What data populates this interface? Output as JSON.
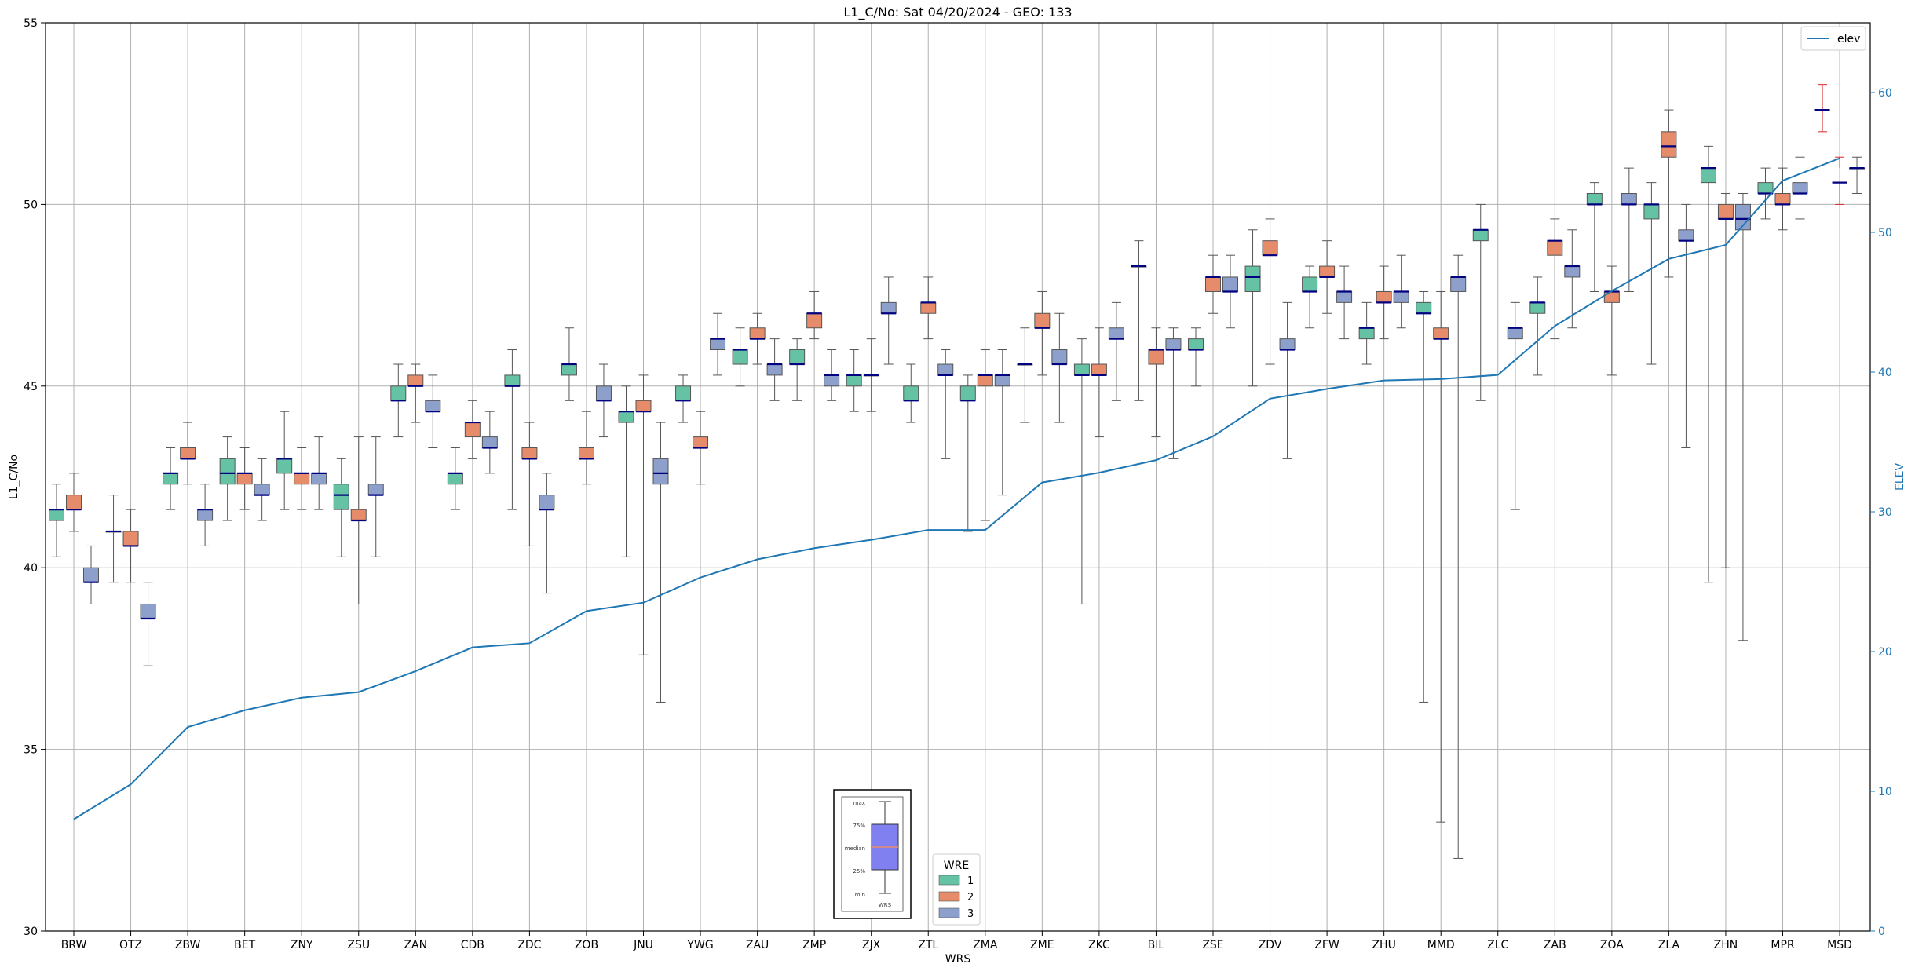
{
  "chart_data": {
    "type": "box",
    "title": "L1_C/No: Sat 04/20/2024 - GEO: 133",
    "xlabel": "WRS",
    "ylabel": "L1_C/No",
    "y2label": "ELEV",
    "ylim": [
      30,
      55
    ],
    "y2lim": [
      0,
      65
    ],
    "yticks": [
      30,
      35,
      40,
      45,
      50,
      55
    ],
    "y2ticks": [
      0,
      10,
      20,
      30,
      40,
      50,
      60
    ],
    "grid": true,
    "categories": [
      "BRW",
      "OTZ",
      "ZBW",
      "BET",
      "ZNY",
      "ZSU",
      "ZAN",
      "CDB",
      "ZDC",
      "ZOB",
      "JNU",
      "YWG",
      "ZAU",
      "ZMP",
      "ZJX",
      "ZTL",
      "ZMA",
      "ZME",
      "ZKC",
      "BIL",
      "ZSE",
      "ZDV",
      "ZFW",
      "ZHU",
      "MMD",
      "ZLC",
      "ZAB",
      "ZOA",
      "ZLA",
      "ZHN",
      "MPR",
      "MSD"
    ],
    "wre_colors": {
      "1": "#66c2a5",
      "2": "#e78c6a",
      "3": "#8da0cb"
    },
    "median_color": "#000080",
    "whisker_color": "#555555",
    "boxes": [
      {
        "station": "BRW",
        "wre": "1",
        "min": 40.3,
        "q1": 41.3,
        "median": 41.6,
        "q3": 41.6,
        "max": 42.3
      },
      {
        "station": "BRW",
        "wre": "2",
        "min": 41.0,
        "q1": 41.6,
        "median": 41.6,
        "q3": 42.0,
        "max": 42.6
      },
      {
        "station": "BRW",
        "wre": "3",
        "min": 39.0,
        "q1": 39.6,
        "median": 39.6,
        "q3": 40.0,
        "max": 40.6
      },
      {
        "station": "OTZ",
        "wre": "1",
        "min": 39.6,
        "q1": 41.0,
        "median": 41.0,
        "q3": 41.0,
        "max": 42.0
      },
      {
        "station": "OTZ",
        "wre": "2",
        "min": 39.6,
        "q1": 40.6,
        "median": 40.6,
        "q3": 41.0,
        "max": 41.6
      },
      {
        "station": "OTZ",
        "wre": "3",
        "min": 37.3,
        "q1": 38.6,
        "median": 38.6,
        "q3": 39.0,
        "max": 39.6
      },
      {
        "station": "ZBW",
        "wre": "1",
        "min": 41.6,
        "q1": 42.3,
        "median": 42.6,
        "q3": 42.6,
        "max": 43.3
      },
      {
        "station": "ZBW",
        "wre": "2",
        "min": 42.3,
        "q1": 43.0,
        "median": 43.0,
        "q3": 43.3,
        "max": 44.0
      },
      {
        "station": "ZBW",
        "wre": "3",
        "min": 40.6,
        "q1": 41.3,
        "median": 41.6,
        "q3": 41.6,
        "max": 42.3
      },
      {
        "station": "BET",
        "wre": "1",
        "min": 41.3,
        "q1": 42.3,
        "median": 42.6,
        "q3": 43.0,
        "max": 43.6
      },
      {
        "station": "BET",
        "wre": "2",
        "min": 41.6,
        "q1": 42.3,
        "median": 42.6,
        "q3": 42.6,
        "max": 43.3
      },
      {
        "station": "BET",
        "wre": "3",
        "min": 41.3,
        "q1": 42.0,
        "median": 42.0,
        "q3": 42.3,
        "max": 43.0
      },
      {
        "station": "ZNY",
        "wre": "1",
        "min": 41.6,
        "q1": 42.6,
        "median": 43.0,
        "q3": 43.0,
        "max": 44.3
      },
      {
        "station": "ZNY",
        "wre": "2",
        "min": 41.6,
        "q1": 42.3,
        "median": 42.6,
        "q3": 42.6,
        "max": 43.3
      },
      {
        "station": "ZNY",
        "wre": "3",
        "min": 41.6,
        "q1": 42.3,
        "median": 42.6,
        "q3": 42.6,
        "max": 43.6
      },
      {
        "station": "ZSU",
        "wre": "1",
        "min": 40.3,
        "q1": 41.6,
        "median": 42.0,
        "q3": 42.3,
        "max": 43.0
      },
      {
        "station": "ZSU",
        "wre": "2",
        "min": 39.0,
        "q1": 41.3,
        "median": 41.3,
        "q3": 41.6,
        "max": 43.6
      },
      {
        "station": "ZSU",
        "wre": "3",
        "min": 40.3,
        "q1": 42.0,
        "median": 42.0,
        "q3": 42.3,
        "max": 43.6
      },
      {
        "station": "ZAN",
        "wre": "1",
        "min": 43.6,
        "q1": 44.6,
        "median": 44.6,
        "q3": 45.0,
        "max": 45.6
      },
      {
        "station": "ZAN",
        "wre": "2",
        "min": 44.0,
        "q1": 45.0,
        "median": 45.0,
        "q3": 45.3,
        "max": 45.6
      },
      {
        "station": "ZAN",
        "wre": "3",
        "min": 43.3,
        "q1": 44.3,
        "median": 44.3,
        "q3": 44.6,
        "max": 45.3
      },
      {
        "station": "CDB",
        "wre": "1",
        "min": 41.6,
        "q1": 42.3,
        "median": 42.6,
        "q3": 42.6,
        "max": 43.3
      },
      {
        "station": "CDB",
        "wre": "2",
        "min": 43.0,
        "q1": 43.6,
        "median": 44.0,
        "q3": 44.0,
        "max": 44.6
      },
      {
        "station": "CDB",
        "wre": "3",
        "min": 42.6,
        "q1": 43.3,
        "median": 43.3,
        "q3": 43.6,
        "max": 44.3
      },
      {
        "station": "ZDC",
        "wre": "1",
        "min": 41.6,
        "q1": 45.0,
        "median": 45.0,
        "q3": 45.3,
        "max": 46.0
      },
      {
        "station": "ZDC",
        "wre": "2",
        "min": 40.6,
        "q1": 43.0,
        "median": 43.0,
        "q3": 43.3,
        "max": 44.0
      },
      {
        "station": "ZDC",
        "wre": "3",
        "min": 39.3,
        "q1": 41.6,
        "median": 41.6,
        "q3": 42.0,
        "max": 42.6
      },
      {
        "station": "ZOB",
        "wre": "1",
        "min": 44.6,
        "q1": 45.3,
        "median": 45.6,
        "q3": 45.6,
        "max": 46.6
      },
      {
        "station": "ZOB",
        "wre": "2",
        "min": 42.3,
        "q1": 43.0,
        "median": 43.0,
        "q3": 43.3,
        "max": 44.3
      },
      {
        "station": "ZOB",
        "wre": "3",
        "min": 43.6,
        "q1": 44.6,
        "median": 44.6,
        "q3": 45.0,
        "max": 45.6
      },
      {
        "station": "JNU",
        "wre": "1",
        "min": 40.3,
        "q1": 44.0,
        "median": 44.3,
        "q3": 44.3,
        "max": 45.0
      },
      {
        "station": "JNU",
        "wre": "2",
        "min": 37.6,
        "q1": 44.3,
        "median": 44.3,
        "q3": 44.6,
        "max": 45.3
      },
      {
        "station": "JNU",
        "wre": "3",
        "min": 36.3,
        "q1": 42.3,
        "median": 42.6,
        "q3": 43.0,
        "max": 44.0
      },
      {
        "station": "YWG",
        "wre": "1",
        "min": 44.0,
        "q1": 44.6,
        "median": 44.6,
        "q3": 45.0,
        "max": 45.3
      },
      {
        "station": "YWG",
        "wre": "2",
        "min": 42.3,
        "q1": 43.3,
        "median": 43.3,
        "q3": 43.6,
        "max": 44.3
      },
      {
        "station": "YWG",
        "wre": "3",
        "min": 45.3,
        "q1": 46.0,
        "median": 46.3,
        "q3": 46.3,
        "max": 47.0
      },
      {
        "station": "ZAU",
        "wre": "1",
        "min": 45.0,
        "q1": 45.6,
        "median": 46.0,
        "q3": 46.0,
        "max": 46.6
      },
      {
        "station": "ZAU",
        "wre": "2",
        "min": 45.6,
        "q1": 46.3,
        "median": 46.3,
        "q3": 46.6,
        "max": 47.0
      },
      {
        "station": "ZAU",
        "wre": "3",
        "min": 44.6,
        "q1": 45.3,
        "median": 45.6,
        "q3": 45.6,
        "max": 46.3
      },
      {
        "station": "ZMP",
        "wre": "1",
        "min": 44.6,
        "q1": 45.6,
        "median": 45.6,
        "q3": 46.0,
        "max": 46.3
      },
      {
        "station": "ZMP",
        "wre": "2",
        "min": 46.3,
        "q1": 46.6,
        "median": 47.0,
        "q3": 47.0,
        "max": 47.6
      },
      {
        "station": "ZMP",
        "wre": "3",
        "min": 44.6,
        "q1": 45.0,
        "median": 45.3,
        "q3": 45.3,
        "max": 46.0
      },
      {
        "station": "ZJX",
        "wre": "1",
        "min": 44.3,
        "q1": 45.0,
        "median": 45.3,
        "q3": 45.3,
        "max": 46.0
      },
      {
        "station": "ZJX",
        "wre": "2",
        "min": 44.3,
        "q1": 45.3,
        "median": 45.3,
        "q3": 45.3,
        "max": 46.3
      },
      {
        "station": "ZJX",
        "wre": "3",
        "min": 45.6,
        "q1": 47.0,
        "median": 47.0,
        "q3": 47.3,
        "max": 48.0
      },
      {
        "station": "ZTL",
        "wre": "1",
        "min": 44.0,
        "q1": 44.6,
        "median": 44.6,
        "q3": 45.0,
        "max": 45.6
      },
      {
        "station": "ZTL",
        "wre": "2",
        "min": 46.3,
        "q1": 47.0,
        "median": 47.3,
        "q3": 47.3,
        "max": 48.0
      },
      {
        "station": "ZTL",
        "wre": "3",
        "min": 43.0,
        "q1": 45.3,
        "median": 45.3,
        "q3": 45.6,
        "max": 46.0
      },
      {
        "station": "ZMA",
        "wre": "1",
        "min": 41.0,
        "q1": 44.6,
        "median": 44.6,
        "q3": 45.0,
        "max": 45.3
      },
      {
        "station": "ZMA",
        "wre": "2",
        "min": 41.3,
        "q1": 45.0,
        "median": 45.3,
        "q3": 45.3,
        "max": 46.0
      },
      {
        "station": "ZMA",
        "wre": "3",
        "min": 42.0,
        "q1": 45.0,
        "median": 45.3,
        "q3": 45.3,
        "max": 46.0
      },
      {
        "station": "ZME",
        "wre": "1",
        "min": 44.0,
        "q1": 45.6,
        "median": 45.6,
        "q3": 45.6,
        "max": 46.6
      },
      {
        "station": "ZME",
        "wre": "2",
        "min": 45.3,
        "q1": 46.6,
        "median": 46.6,
        "q3": 47.0,
        "max": 47.6
      },
      {
        "station": "ZME",
        "wre": "3",
        "min": 44.0,
        "q1": 45.6,
        "median": 45.6,
        "q3": 46.0,
        "max": 47.0
      },
      {
        "station": "ZKC",
        "wre": "1",
        "min": 39.0,
        "q1": 45.3,
        "median": 45.3,
        "q3": 45.6,
        "max": 46.3
      },
      {
        "station": "ZKC",
        "wre": "2",
        "min": 43.6,
        "q1": 45.3,
        "median": 45.3,
        "q3": 45.6,
        "max": 46.6
      },
      {
        "station": "ZKC",
        "wre": "3",
        "min": 44.6,
        "q1": 46.3,
        "median": 46.3,
        "q3": 46.6,
        "max": 47.3
      },
      {
        "station": "BIL",
        "wre": "1",
        "min": 44.6,
        "q1": 48.3,
        "median": 48.3,
        "q3": 48.3,
        "max": 49.0
      },
      {
        "station": "BIL",
        "wre": "2",
        "min": 43.6,
        "q1": 45.6,
        "median": 46.0,
        "q3": 46.0,
        "max": 46.6
      },
      {
        "station": "BIL",
        "wre": "3",
        "min": 43.0,
        "q1": 46.0,
        "median": 46.0,
        "q3": 46.3,
        "max": 46.6
      },
      {
        "station": "ZSE",
        "wre": "1",
        "min": 45.0,
        "q1": 46.0,
        "median": 46.0,
        "q3": 46.3,
        "max": 46.6
      },
      {
        "station": "ZSE",
        "wre": "2",
        "min": 47.0,
        "q1": 47.6,
        "median": 48.0,
        "q3": 48.0,
        "max": 48.6
      },
      {
        "station": "ZSE",
        "wre": "3",
        "min": 46.6,
        "q1": 47.6,
        "median": 47.6,
        "q3": 48.0,
        "max": 48.6
      },
      {
        "station": "ZDV",
        "wre": "1",
        "min": 45.0,
        "q1": 47.6,
        "median": 48.0,
        "q3": 48.3,
        "max": 49.3
      },
      {
        "station": "ZDV",
        "wre": "2",
        "min": 45.6,
        "q1": 48.6,
        "median": 48.6,
        "q3": 49.0,
        "max": 49.6
      },
      {
        "station": "ZDV",
        "wre": "3",
        "min": 43.0,
        "q1": 46.0,
        "median": 46.0,
        "q3": 46.3,
        "max": 47.3
      },
      {
        "station": "ZFW",
        "wre": "1",
        "min": 46.6,
        "q1": 47.6,
        "median": 47.6,
        "q3": 48.0,
        "max": 48.3
      },
      {
        "station": "ZFW",
        "wre": "2",
        "min": 47.0,
        "q1": 48.0,
        "median": 48.0,
        "q3": 48.3,
        "max": 49.0
      },
      {
        "station": "ZFW",
        "wre": "3",
        "min": 46.3,
        "q1": 47.3,
        "median": 47.6,
        "q3": 47.6,
        "max": 48.3
      },
      {
        "station": "ZHU",
        "wre": "1",
        "min": 45.6,
        "q1": 46.3,
        "median": 46.6,
        "q3": 46.6,
        "max": 47.3
      },
      {
        "station": "ZHU",
        "wre": "2",
        "min": 46.3,
        "q1": 47.3,
        "median": 47.3,
        "q3": 47.6,
        "max": 48.3
      },
      {
        "station": "ZHU",
        "wre": "3",
        "min": 46.6,
        "q1": 47.3,
        "median": 47.6,
        "q3": 47.6,
        "max": 48.6
      },
      {
        "station": "MMD",
        "wre": "1",
        "min": 36.3,
        "q1": 47.0,
        "median": 47.0,
        "q3": 47.3,
        "max": 47.6
      },
      {
        "station": "MMD",
        "wre": "2",
        "min": 33.0,
        "q1": 46.3,
        "median": 46.3,
        "q3": 46.6,
        "max": 47.6
      },
      {
        "station": "MMD",
        "wre": "3",
        "min": 32.0,
        "q1": 47.6,
        "median": 48.0,
        "q3": 48.0,
        "max": 48.6
      },
      {
        "station": "ZLC",
        "wre": "1",
        "min": 44.6,
        "q1": 49.0,
        "median": 49.3,
        "q3": 49.3,
        "max": 50.0
      },
      {
        "station": "ZLC",
        "wre": "2",
        "min": null,
        "q1": null,
        "median": null,
        "q3": null,
        "max": null
      },
      {
        "station": "ZLC",
        "wre": "3",
        "min": 41.6,
        "q1": 46.3,
        "median": 46.6,
        "q3": 46.6,
        "max": 47.3
      },
      {
        "station": "ZAB",
        "wre": "1",
        "min": 45.3,
        "q1": 47.0,
        "median": 47.3,
        "q3": 47.3,
        "max": 48.0
      },
      {
        "station": "ZAB",
        "wre": "2",
        "min": 46.3,
        "q1": 48.6,
        "median": 49.0,
        "q3": 49.0,
        "max": 49.6
      },
      {
        "station": "ZAB",
        "wre": "3",
        "min": 46.6,
        "q1": 48.0,
        "median": 48.3,
        "q3": 48.3,
        "max": 49.3
      },
      {
        "station": "ZOA",
        "wre": "1",
        "min": 47.6,
        "q1": 50.0,
        "median": 50.0,
        "q3": 50.3,
        "max": 50.6
      },
      {
        "station": "ZOA",
        "wre": "2",
        "min": 45.3,
        "q1": 47.3,
        "median": 47.6,
        "q3": 47.6,
        "max": 48.3
      },
      {
        "station": "ZOA",
        "wre": "3",
        "min": 47.6,
        "q1": 50.0,
        "median": 50.0,
        "q3": 50.3,
        "max": 51.0
      },
      {
        "station": "ZLA",
        "wre": "1",
        "min": 45.6,
        "q1": 49.6,
        "median": 50.0,
        "q3": 50.0,
        "max": 50.6
      },
      {
        "station": "ZLA",
        "wre": "2",
        "min": 48.0,
        "q1": 51.3,
        "median": 51.6,
        "q3": 52.0,
        "max": 52.6
      },
      {
        "station": "ZLA",
        "wre": "3",
        "min": 43.3,
        "q1": 49.0,
        "median": 49.0,
        "q3": 49.3,
        "max": 50.0
      },
      {
        "station": "ZHN",
        "wre": "1",
        "min": 39.6,
        "q1": 50.6,
        "median": 51.0,
        "q3": 51.0,
        "max": 51.6
      },
      {
        "station": "ZHN",
        "wre": "2",
        "min": 40.0,
        "q1": 49.6,
        "median": 49.6,
        "q3": 50.0,
        "max": 50.3
      },
      {
        "station": "ZHN",
        "wre": "3",
        "min": 38.0,
        "q1": 49.3,
        "median": 49.6,
        "q3": 50.0,
        "max": 50.3
      },
      {
        "station": "MPR",
        "wre": "1",
        "min": 49.6,
        "q1": 50.3,
        "median": 50.3,
        "q3": 50.6,
        "max": 51.0
      },
      {
        "station": "MPR",
        "wre": "2",
        "min": 49.3,
        "q1": 50.0,
        "median": 50.0,
        "q3": 50.3,
        "max": 51.0
      },
      {
        "station": "MPR",
        "wre": "3",
        "min": 49.6,
        "q1": 50.3,
        "median": 50.3,
        "q3": 50.6,
        "max": 51.3
      },
      {
        "station": "MSD",
        "wre": "1",
        "min": 52.0,
        "q1": 52.6,
        "median": 52.6,
        "q3": 52.6,
        "max": 53.3
      },
      {
        "station": "MSD",
        "wre": "2",
        "min": 50.0,
        "q1": 50.6,
        "median": 50.6,
        "q3": 51.0,
        "max": 51.3
      },
      {
        "station": "MSD",
        "wre": "3",
        "min": 50.3,
        "q1": 51.0,
        "median": 51.0,
        "q3": 51.0,
        "max": 51.3
      }
    ],
    "series": [
      {
        "name": "elev",
        "color": "#1f77b4",
        "values": [
          8.0,
          10.5,
          14.6,
          15.8,
          16.7,
          17.1,
          18.6,
          20.3,
          20.6,
          22.9,
          23.5,
          25.3,
          26.6,
          27.4,
          28.0,
          28.7,
          28.7,
          32.1,
          32.8,
          33.7,
          35.4,
          38.1,
          38.8,
          39.4,
          39.5,
          39.8,
          43.3,
          45.8,
          48.1,
          49.1,
          53.7,
          55.3
        ]
      }
    ],
    "legend_position": "top-right",
    "wre_legend": {
      "title": "WRE",
      "entries": [
        "1",
        "2",
        "3"
      ],
      "position": "bottom-center"
    },
    "key_box": {
      "labels": [
        "max",
        "75%",
        "median",
        "25%",
        "min"
      ],
      "xlabel": "WRS"
    }
  }
}
